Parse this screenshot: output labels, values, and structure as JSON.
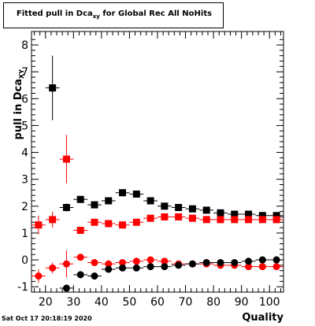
{
  "title": {
    "main": "Fitted pull in Dca",
    "sub": "xy",
    "rest": " for Global Rec All NoHits"
  },
  "ylabel": {
    "main": "pull in Dca",
    "sub": "XY"
  },
  "xlabel": "Quality",
  "datestamp": "Sat Oct 17 20:18:19 2020",
  "colors": {
    "black_series": "#000000",
    "red_series": "#ff0000"
  },
  "chart_data": {
    "type": "scatter",
    "xlim": [
      15,
      105
    ],
    "ylim": [
      -1.2,
      8.5
    ],
    "xticks": [
      20,
      30,
      40,
      50,
      60,
      70,
      80,
      90,
      100
    ],
    "yticks": [
      -1,
      0,
      1,
      2,
      3,
      4,
      5,
      6,
      7,
      8
    ],
    "grid": false,
    "series": [
      {
        "marker": "square",
        "color": "#000000",
        "x": [
          22.5,
          27.5,
          32.5,
          37.5,
          42.5,
          47.5,
          52.5,
          57.5,
          62.5,
          67.5,
          72.5,
          77.5,
          82.5,
          87.5,
          92.5,
          97.5,
          102.5
        ],
        "y": [
          6.4,
          1.95,
          2.25,
          2.05,
          2.2,
          2.5,
          2.45,
          2.2,
          2.0,
          1.95,
          1.9,
          1.85,
          1.75,
          1.7,
          1.7,
          1.65,
          1.65
        ],
        "err": [
          1.2,
          0.15,
          0.1,
          0.08,
          0.08,
          0.06,
          0.05,
          0.05,
          0.05,
          0.04,
          0.04,
          0.04,
          0.04,
          0.04,
          0.04,
          0.04,
          0.04
        ]
      },
      {
        "marker": "square",
        "color": "#ff0000",
        "x": [
          17.5,
          22.5,
          27.5,
          32.5,
          37.5,
          42.5,
          47.5,
          52.5,
          57.5,
          62.5,
          67.5,
          72.5,
          77.5,
          82.5,
          87.5,
          92.5,
          97.5,
          102.5
        ],
        "y": [
          1.3,
          1.5,
          3.75,
          1.1,
          1.4,
          1.35,
          1.3,
          1.4,
          1.55,
          1.6,
          1.6,
          1.55,
          1.5,
          1.5,
          1.5,
          1.5,
          1.5,
          1.5
        ],
        "err": [
          0.35,
          0.3,
          0.9,
          0.1,
          0.08,
          0.06,
          0.05,
          0.05,
          0.04,
          0.04,
          0.04,
          0.04,
          0.04,
          0.04,
          0.04,
          0.04,
          0.04,
          0.04
        ]
      },
      {
        "marker": "circle",
        "color": "#ff0000",
        "x": [
          17.5,
          22.5,
          27.5,
          32.5,
          37.5,
          42.5,
          47.5,
          52.5,
          57.5,
          62.5,
          67.5,
          72.5,
          77.5,
          82.5,
          87.5,
          92.5,
          97.5,
          102.5
        ],
        "y": [
          -0.6,
          -0.3,
          -0.15,
          0.1,
          -0.1,
          -0.15,
          -0.1,
          -0.05,
          0.0,
          -0.05,
          -0.15,
          -0.15,
          -0.15,
          -0.2,
          -0.2,
          -0.25,
          -0.25,
          -0.25
        ],
        "err": [
          0.25,
          0.2,
          0.5,
          0.08,
          0.06,
          0.05,
          0.05,
          0.04,
          0.04,
          0.04,
          0.04,
          0.03,
          0.03,
          0.03,
          0.03,
          0.03,
          0.03,
          0.03
        ]
      },
      {
        "marker": "circle",
        "color": "#000000",
        "x": [
          27.5,
          32.5,
          37.5,
          42.5,
          47.5,
          52.5,
          57.5,
          62.5,
          67.5,
          72.5,
          77.5,
          82.5,
          87.5,
          92.5,
          97.5,
          102.5
        ],
        "y": [
          -1.05,
          -0.55,
          -0.6,
          -0.35,
          -0.3,
          -0.3,
          -0.25,
          -0.25,
          -0.2,
          -0.15,
          -0.1,
          -0.1,
          -0.1,
          -0.05,
          0.0,
          0.0
        ],
        "err": [
          0.1,
          0.08,
          0.06,
          0.05,
          0.05,
          0.04,
          0.04,
          0.04,
          0.04,
          0.04,
          0.03,
          0.03,
          0.03,
          0.03,
          0.03,
          0.03
        ]
      }
    ]
  }
}
